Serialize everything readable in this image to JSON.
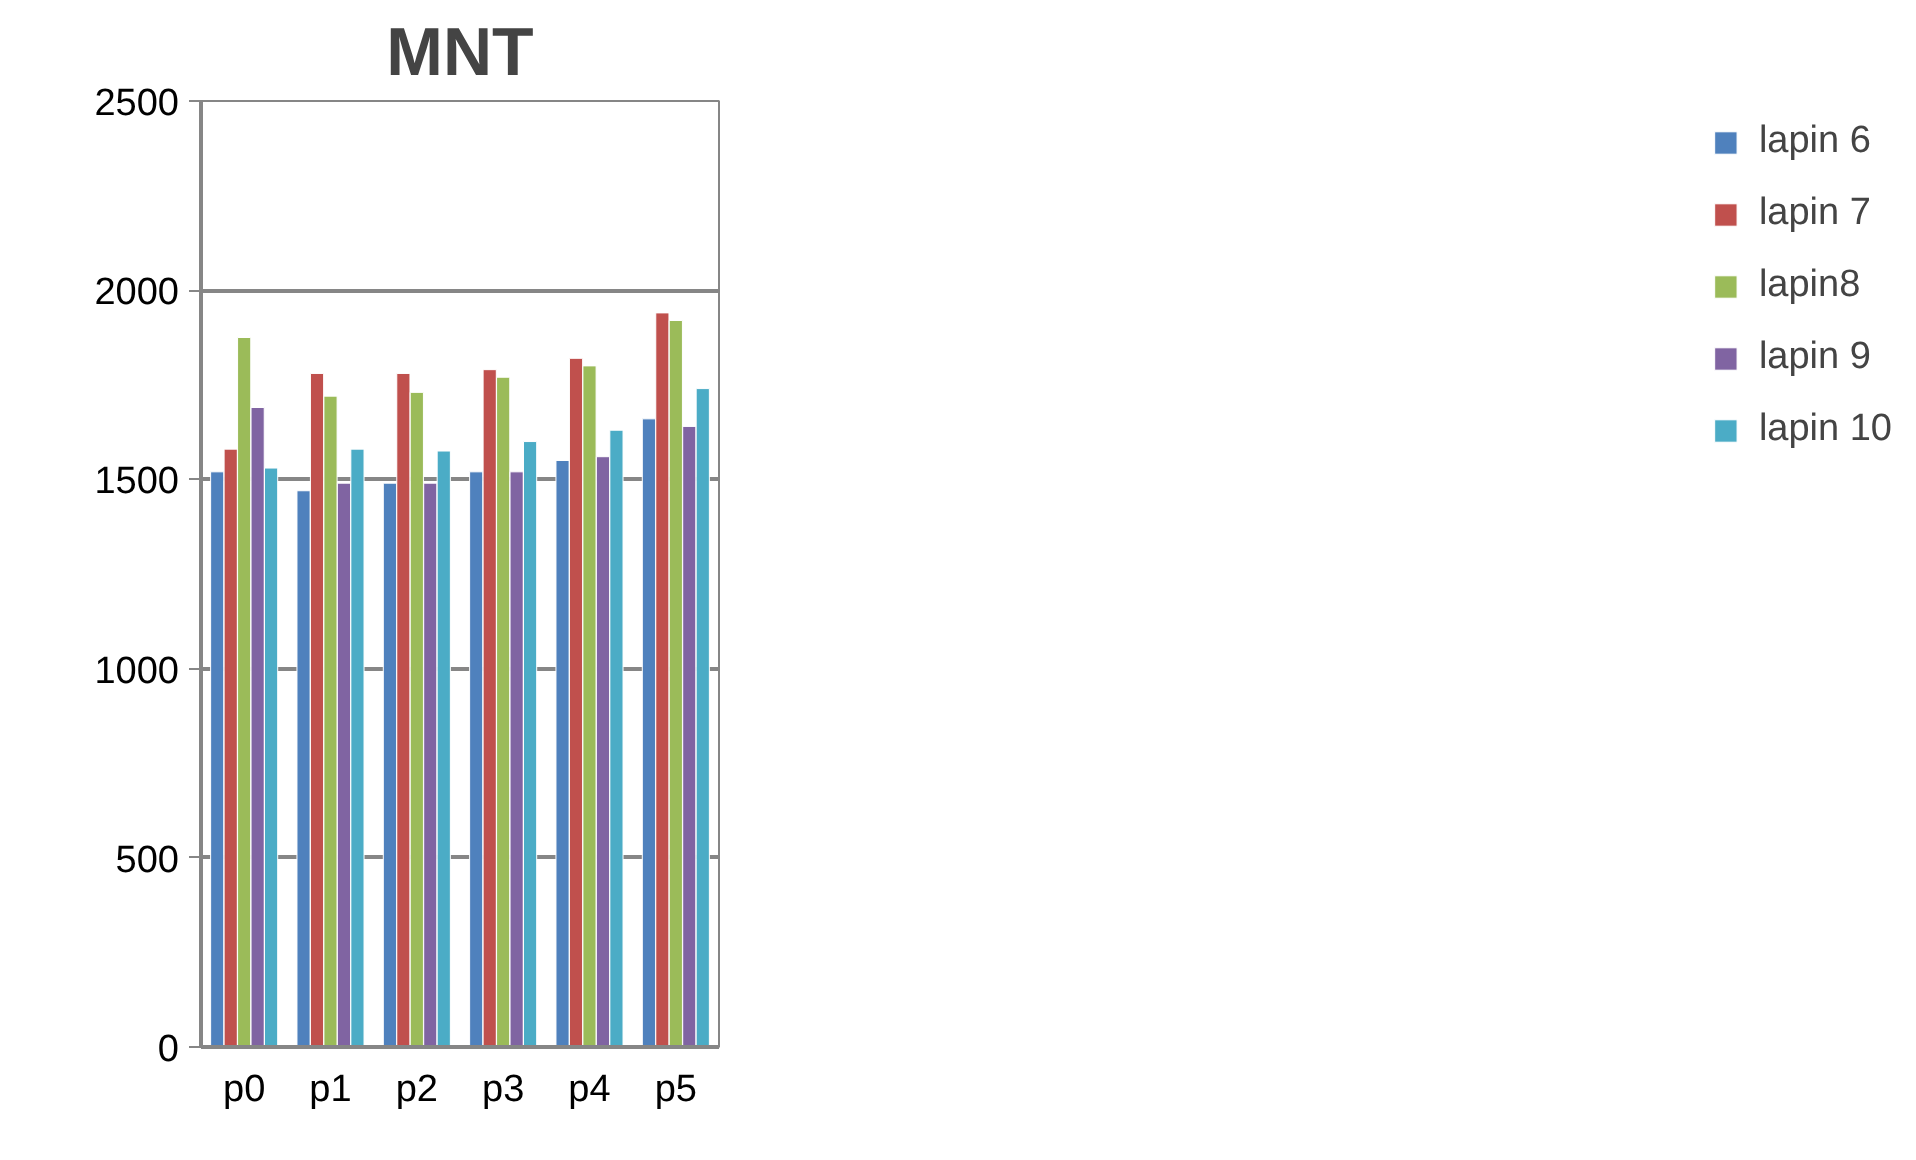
{
  "chart_data": {
    "type": "bar",
    "title": "MNT",
    "categories": [
      "p0",
      "p1",
      "p2",
      "p3",
      "p4",
      "p5"
    ],
    "series": [
      {
        "name": "lapin 6",
        "color": "#4f81bd",
        "values": [
          1520,
          1470,
          1490,
          1520,
          1550,
          1660
        ]
      },
      {
        "name": "lapin 7",
        "color": "#c0504d",
        "values": [
          1580,
          1780,
          1780,
          1790,
          1820,
          1940
        ]
      },
      {
        "name": "lapin8",
        "color": "#9bbb59",
        "values": [
          1875,
          1720,
          1730,
          1770,
          1800,
          1920
        ]
      },
      {
        "name": "lapin 9",
        "color": "#8064a2",
        "values": [
          1690,
          1490,
          1490,
          1520,
          1560,
          1640
        ]
      },
      {
        "name": "lapin 10",
        "color": "#4bacc6",
        "values": [
          1530,
          1580,
          1575,
          1600,
          1630,
          1740
        ]
      }
    ],
    "ylim": [
      0,
      2500
    ],
    "yticks": [
      0,
      500,
      1000,
      1500,
      2000,
      2500
    ],
    "grid": "y",
    "legend": "right"
  }
}
